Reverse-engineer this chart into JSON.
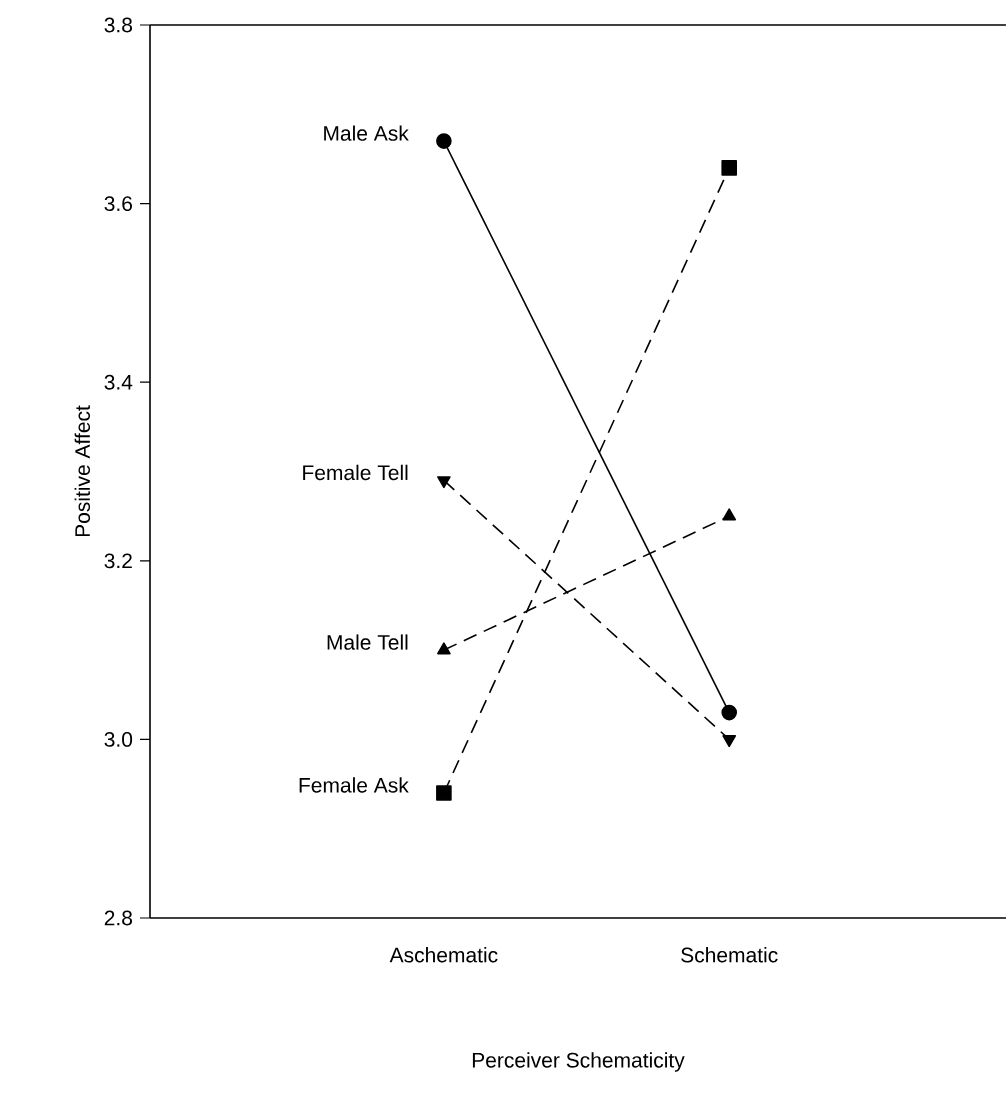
{
  "chart_data": {
    "type": "line",
    "xlabel": "Perceiver Schematicity",
    "ylabel": "Positive Affect",
    "categories": [
      "Aschematic",
      "Schematic"
    ],
    "ylim": [
      2.8,
      3.8
    ],
    "yticks": [
      {
        "value": 2.8,
        "label": "2.8"
      },
      {
        "value": 3.0,
        "label": "3.0"
      },
      {
        "value": 3.2,
        "label": "3.2"
      },
      {
        "value": 3.4,
        "label": "3.4"
      },
      {
        "value": 3.6,
        "label": "3.6"
      },
      {
        "value": 3.8,
        "label": "3.8"
      }
    ],
    "grid": false,
    "series": [
      {
        "name": "Male Ask",
        "color": "#000000",
        "marker": "circle",
        "line_style": "solid",
        "values": [
          3.67,
          3.03
        ]
      },
      {
        "name": "Female Ask",
        "color": "#000000",
        "marker": "square",
        "line_style": "dashed",
        "values": [
          2.94,
          3.64
        ]
      },
      {
        "name": "Female Tell",
        "color": "#000000",
        "marker": "triangle-down",
        "line_style": "dashed",
        "values": [
          3.29,
          3.0
        ]
      },
      {
        "name": "Male Tell",
        "color": "#000000",
        "marker": "triangle",
        "line_style": "dashed",
        "values": [
          3.1,
          3.25
        ]
      }
    ]
  }
}
